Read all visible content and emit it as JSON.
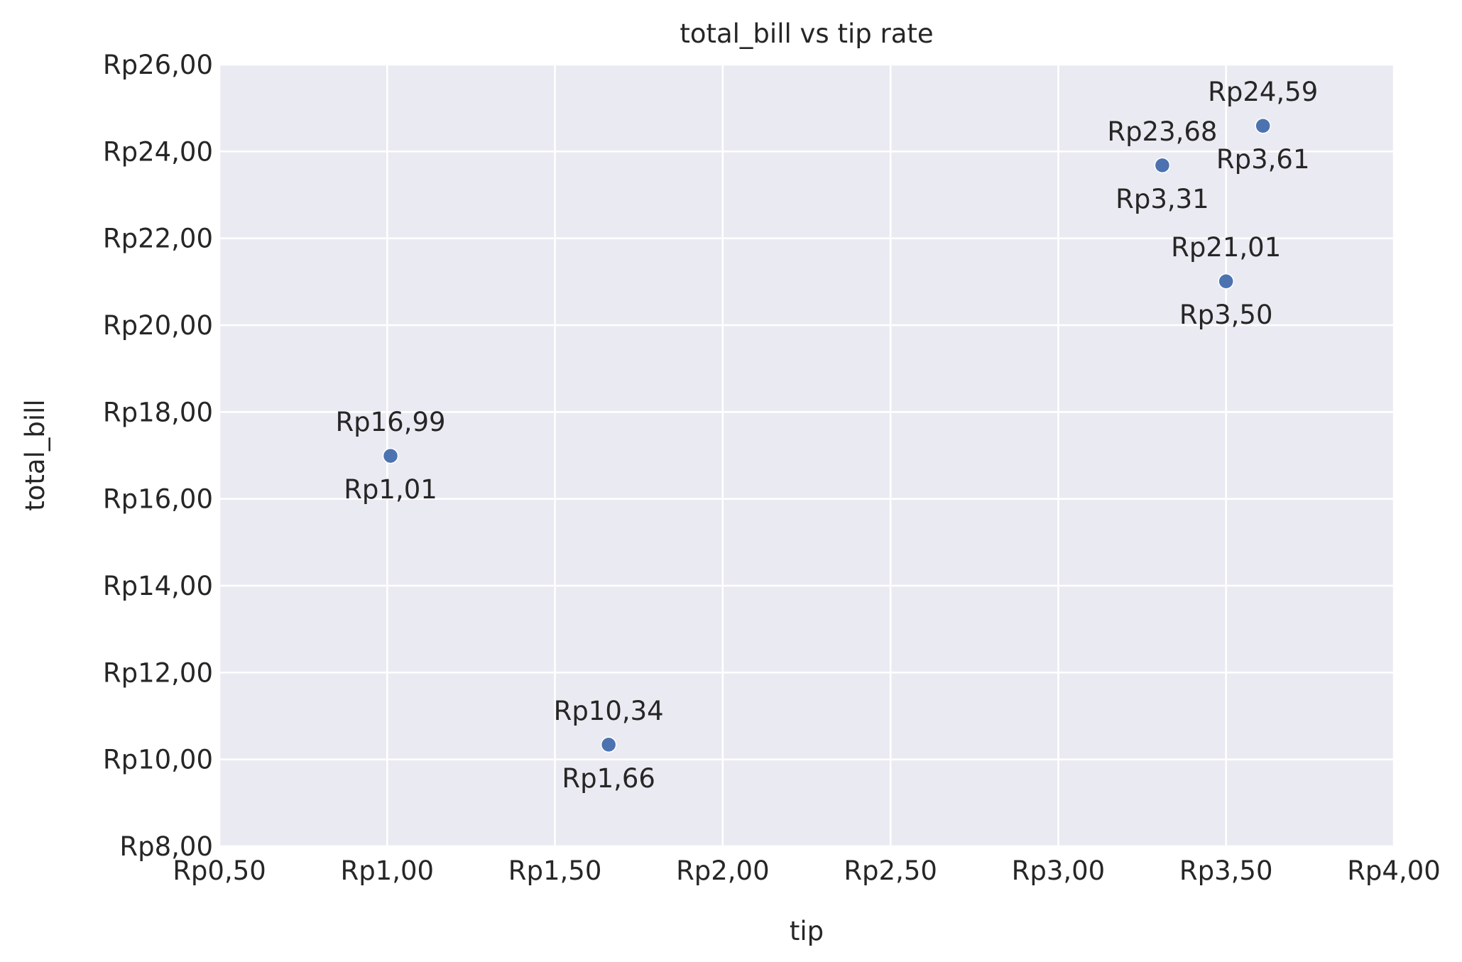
{
  "chart_data": {
    "type": "scatter",
    "title": "total_bill vs tip rate",
    "xlabel": "tip",
    "ylabel": "total_bill",
    "xlim": [
      0.5,
      4.0
    ],
    "ylim": [
      8,
      26
    ],
    "grid": true,
    "x_ticks": [
      0.5,
      1.0,
      1.5,
      2.0,
      2.5,
      3.0,
      3.5,
      4.0
    ],
    "x_tick_labels": [
      "Rp0,50",
      "Rp1,00",
      "Rp1,50",
      "Rp2,00",
      "Rp2,50",
      "Rp3,00",
      "Rp3,50",
      "Rp4,00"
    ],
    "y_ticks": [
      8,
      10,
      12,
      14,
      16,
      18,
      20,
      22,
      24,
      26
    ],
    "y_tick_labels": [
      "Rp8,00",
      "Rp10,00",
      "Rp12,00",
      "Rp14,00",
      "Rp16,00",
      "Rp18,00",
      "Rp20,00",
      "Rp22,00",
      "Rp24,00",
      "Rp26,00"
    ],
    "points": [
      {
        "x": 1.01,
        "y": 16.99,
        "label_top": "Rp16,99",
        "label_bottom": "Rp1,01"
      },
      {
        "x": 1.66,
        "y": 10.34,
        "label_top": "Rp10,34",
        "label_bottom": "Rp1,66"
      },
      {
        "x": 3.5,
        "y": 21.01,
        "label_top": "Rp21,01",
        "label_bottom": "Rp3,50"
      },
      {
        "x": 3.31,
        "y": 23.68,
        "label_top": "Rp23,68",
        "label_bottom": "Rp3,31"
      },
      {
        "x": 3.61,
        "y": 24.59,
        "label_top": "Rp24,59",
        "label_bottom": "Rp3,61"
      }
    ],
    "colors": {
      "background": "#eaeaf2",
      "grid": "#ffffff",
      "marker": "#4c72b0",
      "marker_edge": "#ffffff",
      "text": "#262626"
    }
  }
}
